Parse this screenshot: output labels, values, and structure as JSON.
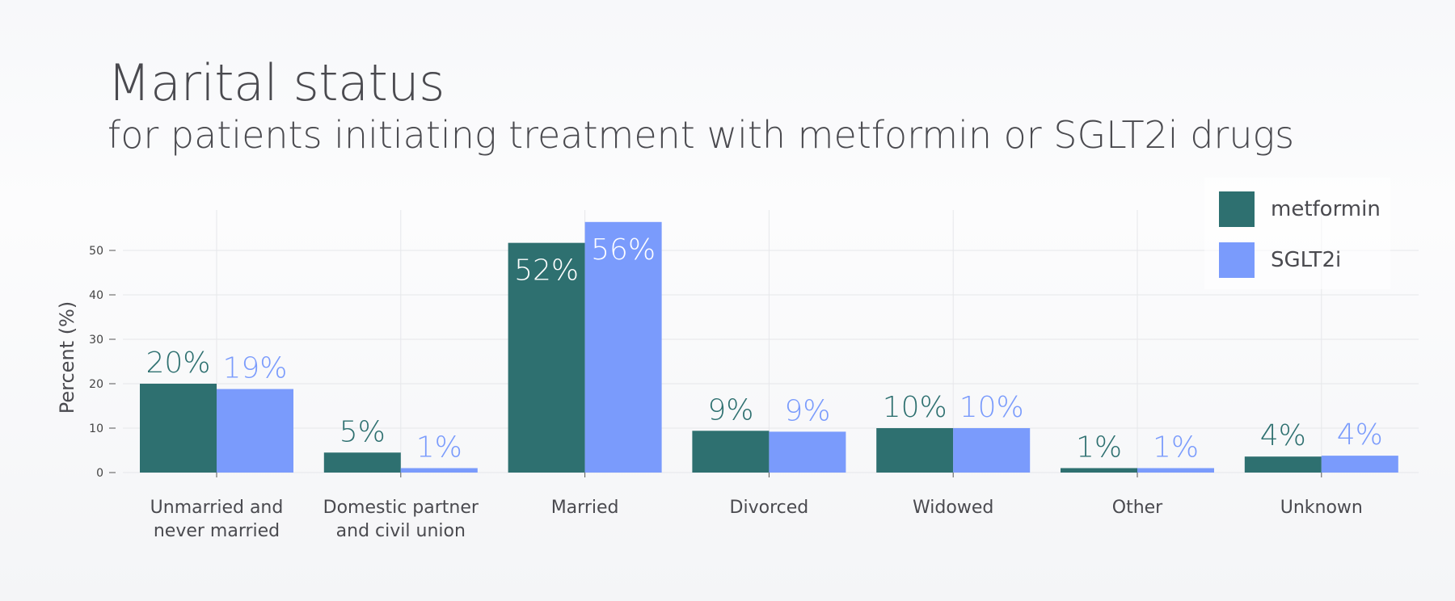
{
  "title": "Marital status",
  "subtitle": "for patients initiating treatment with metformin or SGLT2i drugs",
  "colors": {
    "metformin": "#2e7070",
    "sglt2i": "#7a9bfc",
    "text": "#4a4a4f",
    "grid": "#e6e7ea"
  },
  "legend": [
    {
      "name": "metformin",
      "color": "#2e7070"
    },
    {
      "name": "SGLT2i",
      "color": "#7a9bfc"
    }
  ],
  "chart_data": {
    "type": "bar",
    "title": "Marital status",
    "subtitle": "for patients initiating treatment with metformin or SGLT2i drugs",
    "xlabel": "",
    "ylabel": "Percent (%)",
    "ylim": [
      0,
      59
    ],
    "yticks": [
      0,
      10,
      20,
      30,
      40,
      50
    ],
    "grid": true,
    "legend_position": "top-right",
    "categories": [
      [
        "Unmarried and",
        "never married"
      ],
      [
        "Domestic partner",
        "and civil union"
      ],
      [
        "Married"
      ],
      [
        "Divorced"
      ],
      [
        "Widowed"
      ],
      [
        "Other"
      ],
      [
        "Unknown"
      ]
    ],
    "series": [
      {
        "name": "metformin",
        "color": "#2e7070",
        "values": [
          20,
          4.5,
          51.7,
          9.4,
          10,
          1,
          3.6
        ],
        "labels": [
          "20%",
          "5%",
          "52%",
          "9%",
          "10%",
          "1%",
          "4%"
        ]
      },
      {
        "name": "SGLT2i",
        "color": "#7a9bfc",
        "values": [
          18.8,
          1,
          56.4,
          9.2,
          10,
          1,
          3.8
        ],
        "labels": [
          "19%",
          "1%",
          "56%",
          "9%",
          "10%",
          "1%",
          "4%"
        ]
      }
    ]
  }
}
